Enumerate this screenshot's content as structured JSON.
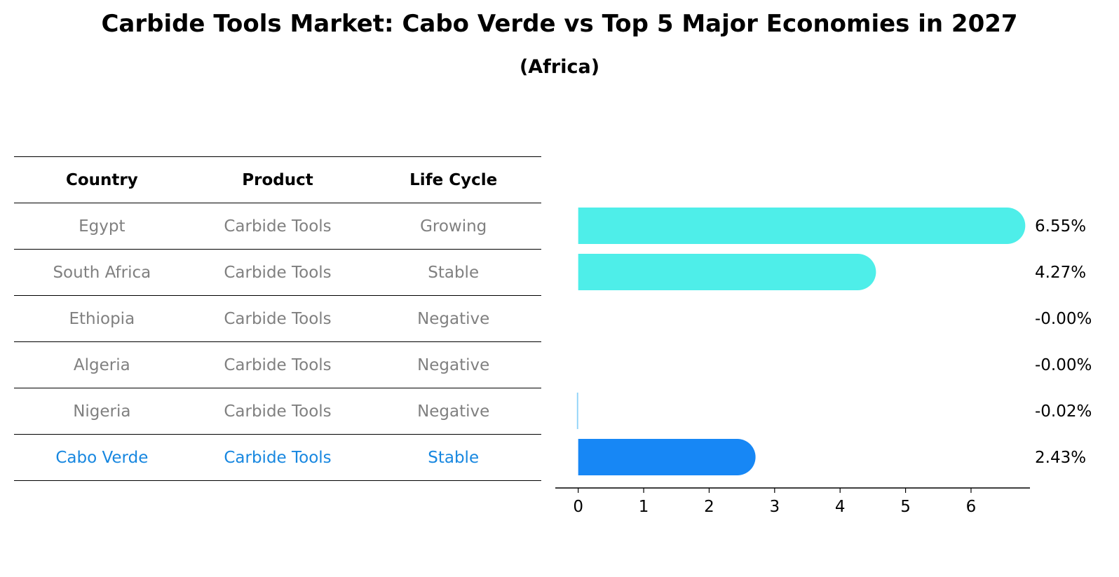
{
  "title": "Carbide Tools Market: Cabo Verde vs Top 5 Major Economies in 2027",
  "subtitle": "(Africa)",
  "table": {
    "headers": [
      "Country",
      "Product",
      "Life Cycle"
    ],
    "rows": [
      [
        "Egypt",
        "Carbide Tools",
        "Growing"
      ],
      [
        "South Africa",
        "Carbide Tools",
        "Stable"
      ],
      [
        "Ethiopia",
        "Carbide Tools",
        "Negative"
      ],
      [
        "Algeria",
        "Carbide Tools",
        "Negative"
      ],
      [
        "Nigeria",
        "Carbide Tools",
        "Negative"
      ],
      [
        "Cabo Verde",
        "Carbide Tools",
        "Stable"
      ]
    ],
    "highlight_row": 5,
    "text_color": "#808080",
    "highlight_color": "#1787e0"
  },
  "chart_data": {
    "type": "bar",
    "orientation": "horizontal",
    "categories": [
      "Egypt",
      "South Africa",
      "Ethiopia",
      "Algeria",
      "Nigeria",
      "Cabo Verde"
    ],
    "values": [
      6.55,
      4.27,
      -0.0,
      -0.0,
      -0.02,
      2.43
    ],
    "value_labels": [
      "6.55%",
      "4.27%",
      "-0.00%",
      "-0.00%",
      "-0.02%",
      "2.43%"
    ],
    "colors": [
      "#4eeee9",
      "#4eeee9",
      "#4eeee9",
      "#4eeee9",
      "#8fd3f8",
      "#1787f5"
    ],
    "xlim": [
      -0.35,
      6.9
    ],
    "xticks": [
      0,
      1,
      2,
      3,
      4,
      5,
      6
    ],
    "rounded_ends": true,
    "grid": false
  }
}
